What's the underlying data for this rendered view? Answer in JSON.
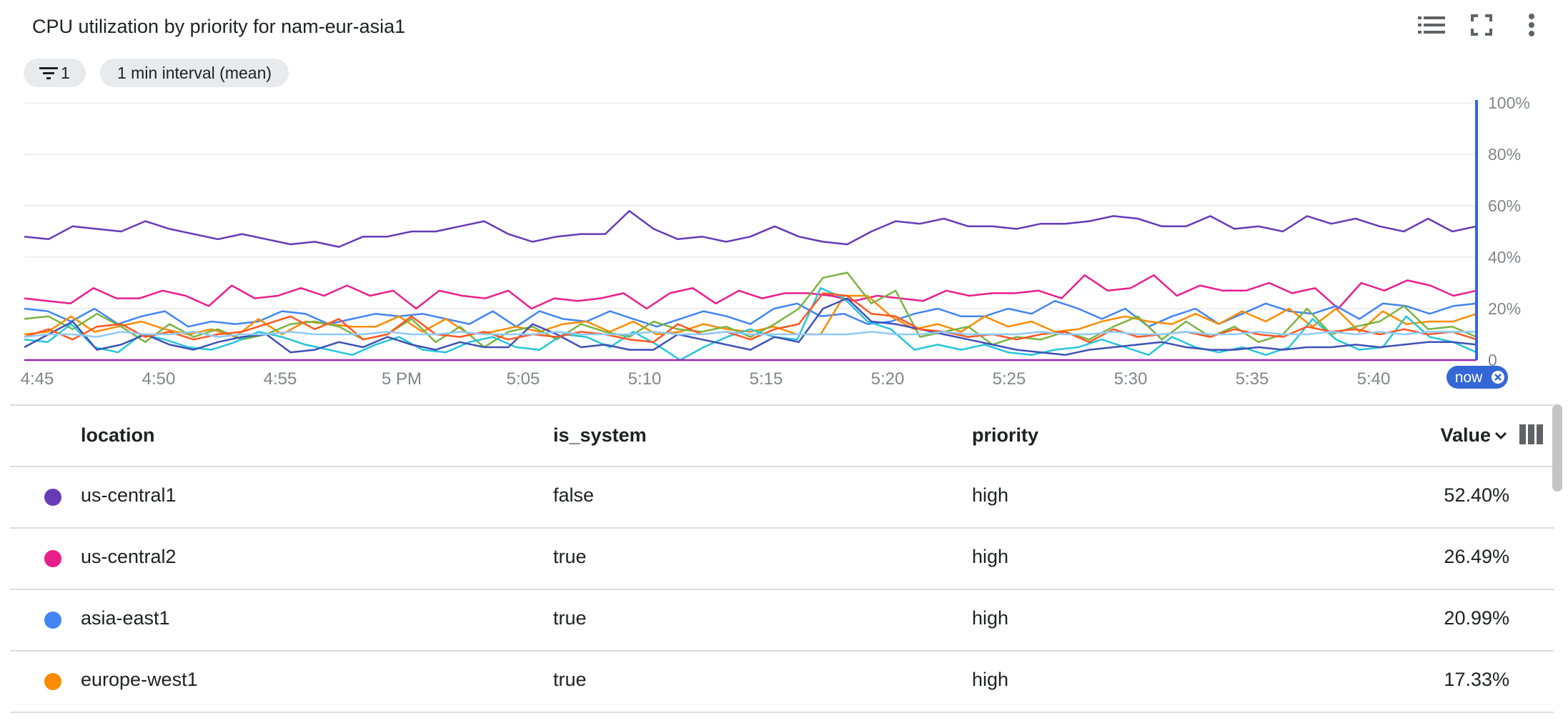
{
  "header": {
    "title": "CPU utilization by priority for nam-eur-asia1",
    "icons": [
      "legend-list-icon",
      "fullscreen-icon",
      "more-vert-icon"
    ]
  },
  "chips": {
    "filter_count": "1",
    "interval": "1 min interval (mean)"
  },
  "colors": {
    "now_marker": "#3367d6",
    "grid": "#e8eaed"
  },
  "chart_data": {
    "type": "line",
    "x_ticks": [
      "4:45",
      "4:50",
      "4:55",
      "5 PM",
      "5:05",
      "5:10",
      "5:15",
      "5:20",
      "5:25",
      "5:30",
      "5:35",
      "5:40"
    ],
    "y_ticks": [
      "0",
      "20%",
      "40%",
      "60%",
      "80%",
      "100%"
    ],
    "ylim": [
      0,
      100
    ],
    "now_label": "now",
    "series": [
      {
        "color": "#673ab7",
        "values": [
          48,
          47,
          52,
          51,
          50,
          54,
          51,
          49,
          47,
          49,
          47,
          45,
          46,
          44,
          48,
          48,
          50,
          50,
          52,
          54,
          49,
          46,
          48,
          49,
          49,
          58,
          51,
          47,
          48,
          46,
          48,
          52,
          48,
          46,
          45,
          50,
          54,
          53,
          55,
          52,
          52,
          51,
          53,
          53,
          54,
          56,
          55,
          52,
          52,
          56,
          51,
          52,
          50,
          56,
          53,
          55,
          52,
          50,
          55,
          50,
          52
        ]
      },
      {
        "color": "#e91e8c",
        "values": [
          24,
          23,
          22,
          28,
          24,
          24,
          27,
          25,
          21,
          29,
          24,
          25,
          28,
          25,
          29,
          25,
          27,
          20,
          27,
          25,
          24,
          27,
          20,
          24,
          23,
          24,
          26,
          20,
          26,
          28,
          22,
          27,
          24,
          26,
          26,
          25,
          23,
          25,
          24,
          23,
          27,
          25,
          26,
          26,
          27,
          24,
          33,
          27,
          28,
          33,
          25,
          29,
          27,
          27,
          30,
          26,
          28,
          20,
          30,
          27,
          31,
          29,
          25,
          27
        ]
      },
      {
        "color": "#4285f4",
        "values": [
          20,
          19,
          15,
          20,
          14,
          17,
          19,
          13,
          15,
          14,
          15,
          19,
          18,
          14,
          16,
          18,
          17,
          18,
          16,
          14,
          19,
          13,
          19,
          16,
          15,
          19,
          16,
          13,
          16,
          19,
          17,
          14,
          20,
          22,
          17,
          18,
          14,
          15,
          18,
          20,
          17,
          17,
          20,
          18,
          23,
          20,
          16,
          20,
          13,
          17,
          20,
          14,
          18,
          22,
          19,
          18,
          21,
          16,
          22,
          21,
          18,
          21,
          22
        ]
      },
      {
        "color": "#fb8c00",
        "values": [
          10,
          11,
          17,
          11,
          13,
          15,
          12,
          10,
          12,
          9,
          16,
          10,
          15,
          14,
          13,
          13,
          17,
          11,
          16,
          10,
          11,
          13,
          11,
          14,
          15,
          11,
          15,
          10,
          11,
          14,
          12,
          11,
          13,
          10,
          10,
          25,
          25,
          17,
          12,
          14,
          11,
          17,
          13,
          15,
          11,
          12,
          15,
          17,
          15,
          14,
          18,
          14,
          19,
          15,
          20,
          13,
          20,
          11,
          19,
          14,
          15,
          15,
          18
        ]
      },
      {
        "color": "#7cb342",
        "values": [
          16,
          17,
          12,
          18,
          13,
          7,
          14,
          9,
          12,
          8,
          10,
          14,
          15,
          13,
          8,
          10,
          16,
          7,
          13,
          5,
          11,
          13,
          8,
          14,
          11,
          9,
          15,
          12,
          11,
          13,
          9,
          14,
          20,
          32,
          34,
          22,
          27,
          9,
          11,
          13,
          6,
          9,
          8,
          11,
          8,
          13,
          17,
          8,
          15,
          9,
          13,
          7,
          10,
          20,
          10,
          13,
          15,
          21,
          12,
          13,
          9
        ]
      },
      {
        "color": "#26c6da",
        "values": [
          8,
          7,
          14,
          5,
          3,
          10,
          8,
          5,
          4,
          7,
          11,
          9,
          6,
          4,
          2,
          6,
          9,
          4,
          3,
          7,
          9,
          5,
          4,
          10,
          9,
          5,
          11,
          6,
          0,
          5,
          9,
          12,
          9,
          8,
          28,
          24,
          15,
          12,
          4,
          6,
          4,
          6,
          3,
          2,
          4,
          5,
          8,
          5,
          2,
          9,
          5,
          3,
          5,
          2,
          5,
          16,
          8,
          4,
          5,
          17,
          9,
          7,
          3
        ]
      },
      {
        "color": "#3f51b5",
        "values": [
          5,
          10,
          15,
          4,
          6,
          10,
          6,
          4,
          7,
          9,
          10,
          3,
          4,
          7,
          5,
          9,
          6,
          4,
          7,
          5,
          5,
          14,
          10,
          5,
          6,
          4,
          4,
          10,
          8,
          6,
          4,
          9,
          7,
          20,
          24,
          15,
          14,
          12,
          10,
          8,
          6,
          4,
          3,
          2,
          4,
          5,
          6,
          7,
          5,
          4,
          4,
          5,
          4,
          5,
          5,
          6,
          5,
          6,
          7,
          7,
          6
        ]
      },
      {
        "color": "#ff5722",
        "values": [
          9,
          12,
          8,
          13,
          14,
          9,
          11,
          8,
          10,
          11,
          14,
          17,
          12,
          16,
          8,
          10,
          17,
          10,
          9,
          11,
          8,
          10,
          9,
          11,
          10,
          8,
          7,
          14,
          10,
          11,
          8,
          12,
          14,
          26,
          25,
          18,
          17,
          12,
          11,
          9,
          10,
          8,
          10,
          11,
          7,
          12,
          9,
          10,
          11,
          9,
          12,
          10,
          9,
          13,
          11,
          12,
          10,
          12,
          10,
          11,
          8
        ]
      },
      {
        "color": "#90caf9",
        "values": [
          9,
          10,
          10,
          9,
          11,
          10,
          10,
          11,
          9,
          10,
          10,
          11,
          10,
          10,
          10,
          11,
          10,
          10,
          11,
          10,
          10,
          10,
          11,
          10,
          10,
          10,
          11,
          10,
          10,
          11,
          10,
          10,
          10,
          10,
          10,
          11,
          10,
          10,
          11,
          10,
          10,
          10,
          11,
          10,
          10,
          11,
          10,
          10,
          11,
          10,
          10,
          11,
          10,
          10,
          11,
          10,
          11,
          10,
          11,
          11,
          11
        ]
      },
      {
        "color": "#9c27b0",
        "values": [
          0,
          0,
          0,
          0,
          0,
          0,
          0,
          0,
          0,
          0,
          0,
          0,
          0,
          0,
          0,
          0,
          0,
          0,
          0,
          0,
          0,
          0,
          0,
          0,
          0,
          0,
          0,
          0,
          0,
          0,
          0,
          0,
          0,
          0,
          0,
          0,
          0,
          0,
          0,
          0,
          0,
          0,
          0,
          0,
          0,
          0,
          0,
          0,
          0,
          0,
          0,
          0,
          0,
          0,
          0,
          0,
          0,
          0,
          0,
          0,
          0
        ]
      }
    ]
  },
  "table": {
    "columns": {
      "location": "location",
      "is_system": "is_system",
      "priority": "priority",
      "value": "Value"
    },
    "rows": [
      {
        "color": "#673ab7",
        "location": "us-central1",
        "is_system": "false",
        "priority": "high",
        "value": "52.40%"
      },
      {
        "color": "#e91e8c",
        "location": "us-central2",
        "is_system": "true",
        "priority": "high",
        "value": "26.49%"
      },
      {
        "color": "#4285f4",
        "location": "asia-east1",
        "is_system": "true",
        "priority": "high",
        "value": "20.99%"
      },
      {
        "color": "#fb8c00",
        "location": "europe-west1",
        "is_system": "true",
        "priority": "high",
        "value": "17.33%"
      }
    ]
  }
}
